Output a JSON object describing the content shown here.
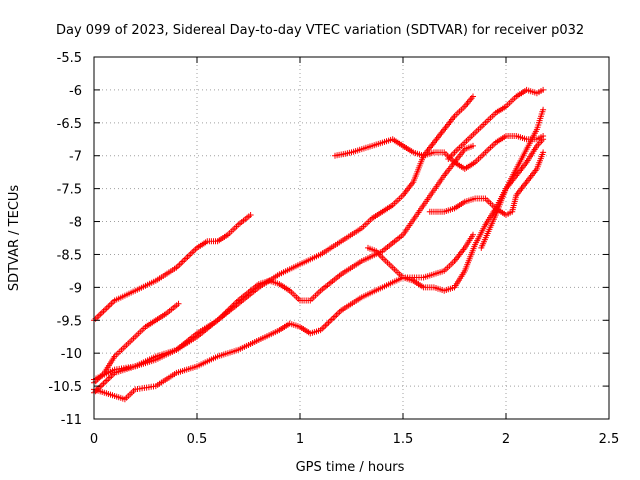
{
  "chart_data": {
    "type": "scatter",
    "title": "Day 099 of 2023, Sidereal Day-to-day VTEC variation (SDTVAR) for receiver p032",
    "xlabel": "GPS time / hours",
    "ylabel": "SDTVAR / TECUs",
    "xlim": [
      0,
      2.5
    ],
    "ylim": [
      -11,
      -5.5
    ],
    "xticks": [
      "0",
      "0.5",
      "1",
      "1.5",
      "2",
      "2.5"
    ],
    "yticks": [
      "-5.5",
      "-6",
      "-6.5",
      "-7",
      "-7.5",
      "-8",
      "-8.5",
      "-9",
      "-9.5",
      "-10",
      "-10.5",
      "-11"
    ],
    "xtick_values": [
      0,
      0.5,
      1,
      1.5,
      2,
      2.5
    ],
    "ytick_values": [
      -5.5,
      -6,
      -6.5,
      -7,
      -7.5,
      -8,
      -8.5,
      -9,
      -9.5,
      -10,
      -10.5,
      -11
    ],
    "grid": true,
    "marker": "+",
    "color": "#ff0000",
    "series": [
      {
        "x": [
          0.0,
          0.1,
          0.2,
          0.3,
          0.4,
          0.5,
          0.55,
          0.6,
          0.65,
          0.7,
          0.76
        ],
        "y": [
          -9.5,
          -9.2,
          -9.05,
          -8.9,
          -8.7,
          -8.4,
          -8.3,
          -8.3,
          -8.2,
          -8.05,
          -7.9
        ]
      },
      {
        "x": [
          0.0,
          0.05,
          0.1,
          0.15,
          0.2,
          0.25,
          0.3,
          0.35,
          0.41
        ],
        "y": [
          -10.45,
          -10.3,
          -10.05,
          -9.9,
          -9.75,
          -9.6,
          -9.5,
          -9.4,
          -9.25
        ]
      },
      {
        "x": [
          0.0,
          0.1,
          0.15,
          0.2,
          0.3,
          0.4,
          0.5,
          0.6,
          0.7,
          0.8,
          0.9,
          0.95,
          1.0,
          1.05,
          1.1,
          1.2,
          1.3,
          1.4,
          1.5,
          1.6,
          1.7,
          1.75,
          1.8,
          1.84
        ],
        "y": [
          -10.55,
          -10.65,
          -10.7,
          -10.55,
          -10.5,
          -10.3,
          -10.2,
          -10.05,
          -9.95,
          -9.8,
          -9.65,
          -9.55,
          -9.6,
          -9.7,
          -9.65,
          -9.35,
          -9.15,
          -9.0,
          -8.85,
          -8.85,
          -8.75,
          -8.6,
          -8.4,
          -8.2
        ]
      },
      {
        "x": [
          0.0,
          0.1,
          0.2,
          0.3,
          0.4,
          0.5,
          0.6,
          0.7,
          0.8,
          0.85,
          0.9,
          0.95,
          1.0,
          1.05,
          1.1,
          1.2,
          1.3,
          1.4,
          1.5,
          1.6,
          1.7,
          1.8,
          1.84
        ],
        "y": [
          -10.4,
          -10.25,
          -10.2,
          -10.05,
          -9.95,
          -9.7,
          -9.5,
          -9.2,
          -8.95,
          -8.9,
          -8.95,
          -9.05,
          -9.2,
          -9.2,
          -9.05,
          -8.8,
          -8.6,
          -8.45,
          -8.2,
          -7.75,
          -7.3,
          -6.9,
          -6.85
        ]
      },
      {
        "x": [
          0.0,
          0.1,
          0.2,
          0.3,
          0.4,
          0.5,
          0.6,
          0.7,
          0.8,
          0.9,
          1.0,
          1.1,
          1.2,
          1.3,
          1.35,
          1.4,
          1.45,
          1.5,
          1.55,
          1.6,
          1.65,
          1.7,
          1.75,
          1.8,
          1.84
        ],
        "y": [
          -10.6,
          -10.3,
          -10.2,
          -10.1,
          -9.95,
          -9.75,
          -9.5,
          -9.25,
          -9.0,
          -8.8,
          -8.65,
          -8.5,
          -8.3,
          -8.1,
          -7.95,
          -7.85,
          -7.75,
          -7.6,
          -7.4,
          -7.0,
          -6.8,
          -6.6,
          -6.4,
          -6.25,
          -6.1
        ]
      },
      {
        "x": [
          1.17,
          1.25,
          1.3,
          1.35,
          1.4,
          1.45,
          1.5,
          1.55,
          1.6,
          1.65,
          1.7,
          1.75,
          1.8,
          1.85,
          1.9,
          1.95,
          2.0,
          2.05,
          2.1,
          2.15,
          2.18
        ],
        "y": [
          -7.0,
          -6.95,
          -6.9,
          -6.85,
          -6.8,
          -6.75,
          -6.85,
          -6.95,
          -7.0,
          -6.95,
          -6.95,
          -7.1,
          -7.2,
          -7.1,
          -6.95,
          -6.8,
          -6.7,
          -6.7,
          -6.75,
          -6.75,
          -6.7
        ]
      },
      {
        "x": [
          1.33,
          1.37,
          1.4,
          1.45,
          1.5,
          1.55,
          1.6,
          1.65,
          1.7,
          1.75,
          1.8,
          1.85,
          1.9,
          1.95,
          2.0,
          2.05,
          2.1,
          2.15,
          2.18
        ],
        "y": [
          -8.4,
          -8.45,
          -8.55,
          -8.7,
          -8.85,
          -8.9,
          -9.0,
          -9.0,
          -9.05,
          -9.0,
          -8.75,
          -8.35,
          -8.05,
          -7.8,
          -7.5,
          -7.3,
          -7.1,
          -6.85,
          -6.75
        ]
      },
      {
        "x": [
          1.63,
          1.7,
          1.75,
          1.8,
          1.85,
          1.9,
          1.95,
          2.0,
          2.03,
          2.05,
          2.1,
          2.15,
          2.18
        ],
        "y": [
          -7.85,
          -7.85,
          -7.8,
          -7.7,
          -7.65,
          -7.65,
          -7.8,
          -7.9,
          -7.85,
          -7.6,
          -7.4,
          -7.2,
          -6.95
        ]
      },
      {
        "x": [
          1.72,
          1.75,
          1.8,
          1.85,
          1.9,
          1.95,
          2.0,
          2.05,
          2.1,
          2.15,
          2.18
        ],
        "y": [
          -7.05,
          -6.95,
          -6.8,
          -6.65,
          -6.5,
          -6.35,
          -6.25,
          -6.1,
          -6.0,
          -6.05,
          -6.0
        ]
      },
      {
        "x": [
          1.88,
          1.95,
          2.0,
          2.05,
          2.1,
          2.15,
          2.18
        ],
        "y": [
          -8.4,
          -7.9,
          -7.5,
          -7.2,
          -6.9,
          -6.6,
          -6.3
        ]
      }
    ]
  }
}
